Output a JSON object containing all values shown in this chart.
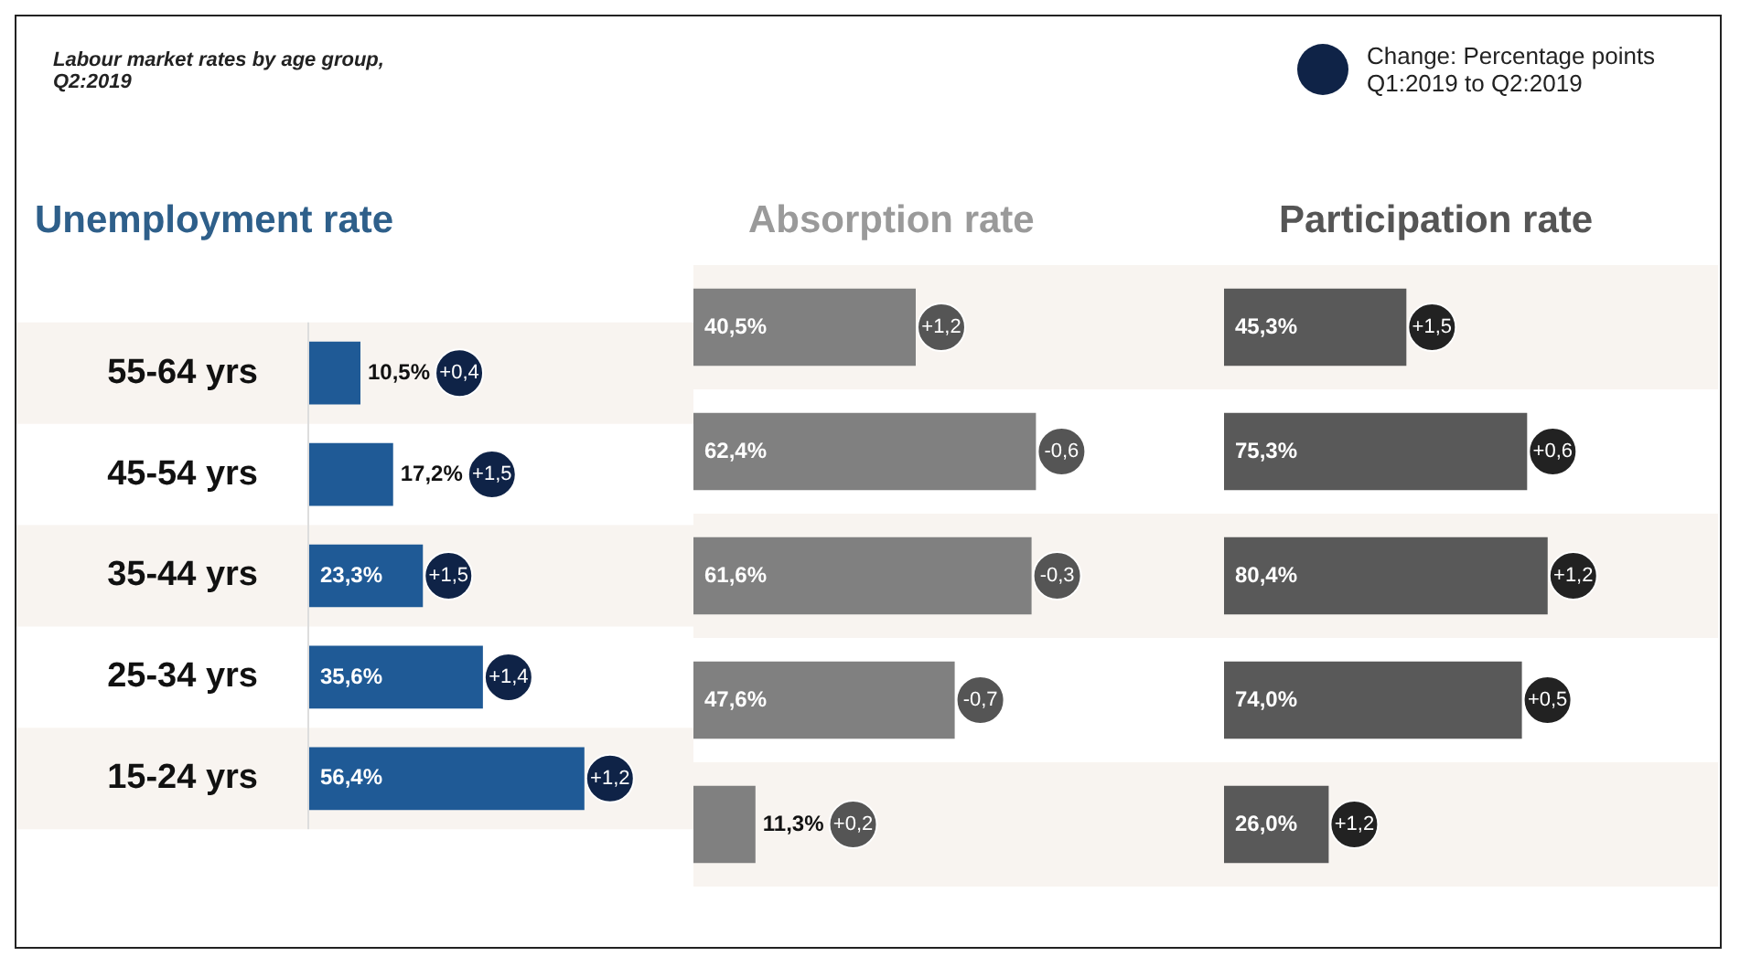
{
  "chart_data": [
    {
      "type": "bar",
      "orientation": "horizontal",
      "title": "Unemployment rate",
      "subtitle": "Labour market rates by age group, Q2:2019",
      "legend_title": "Change: Percentage points Q1:2019 to Q2:2019",
      "categories": [
        "55-64 yrs",
        "45-54 yrs",
        "35-44 yrs",
        "25-34 yrs",
        "15-24 yrs"
      ],
      "values": [
        10.5,
        17.2,
        23.3,
        35.6,
        56.4
      ],
      "value_labels": [
        "10,5%",
        "17,2%",
        "23,3%",
        "35,6%",
        "56,4%"
      ],
      "color": "#1f5a96",
      "tick_labels": "y",
      "legend": false,
      "annotations": [
        "+0,4",
        "+1,5",
        "+1,5",
        "+1,4",
        "+1,2"
      ]
    },
    {
      "type": "bar",
      "orientation": "horizontal",
      "title": "Absorption rate",
      "categories": [
        null,
        null,
        null,
        null,
        null
      ],
      "values": [
        40.5,
        62.4,
        61.6,
        47.6,
        11.3
      ],
      "value_labels": [
        "40,5%",
        "62,4%",
        "61,6%",
        "47,6%",
        "11,3%"
      ],
      "color": "#808080",
      "tick_labels": false,
      "legend": false,
      "annotations": [
        "+1,2",
        "-0,6",
        "-0,3",
        "-0,7",
        "+0,2"
      ]
    },
    {
      "type": "bar",
      "orientation": "horizontal",
      "title": "Participation rate",
      "categories": [
        null,
        null,
        null,
        null,
        null
      ],
      "values": [
        45.3,
        75.3,
        80.4,
        74.0,
        26.0
      ],
      "value_labels": [
        "45,3%",
        "75,3%",
        "80,4%",
        "74,0%",
        "26,0%"
      ],
      "color": "#595959",
      "tick_labels": false,
      "legend": false,
      "annotations": [
        "+1,5",
        "+0,6",
        "+1,2",
        "+0,5",
        "+1,2"
      ]
    }
  ]
}
